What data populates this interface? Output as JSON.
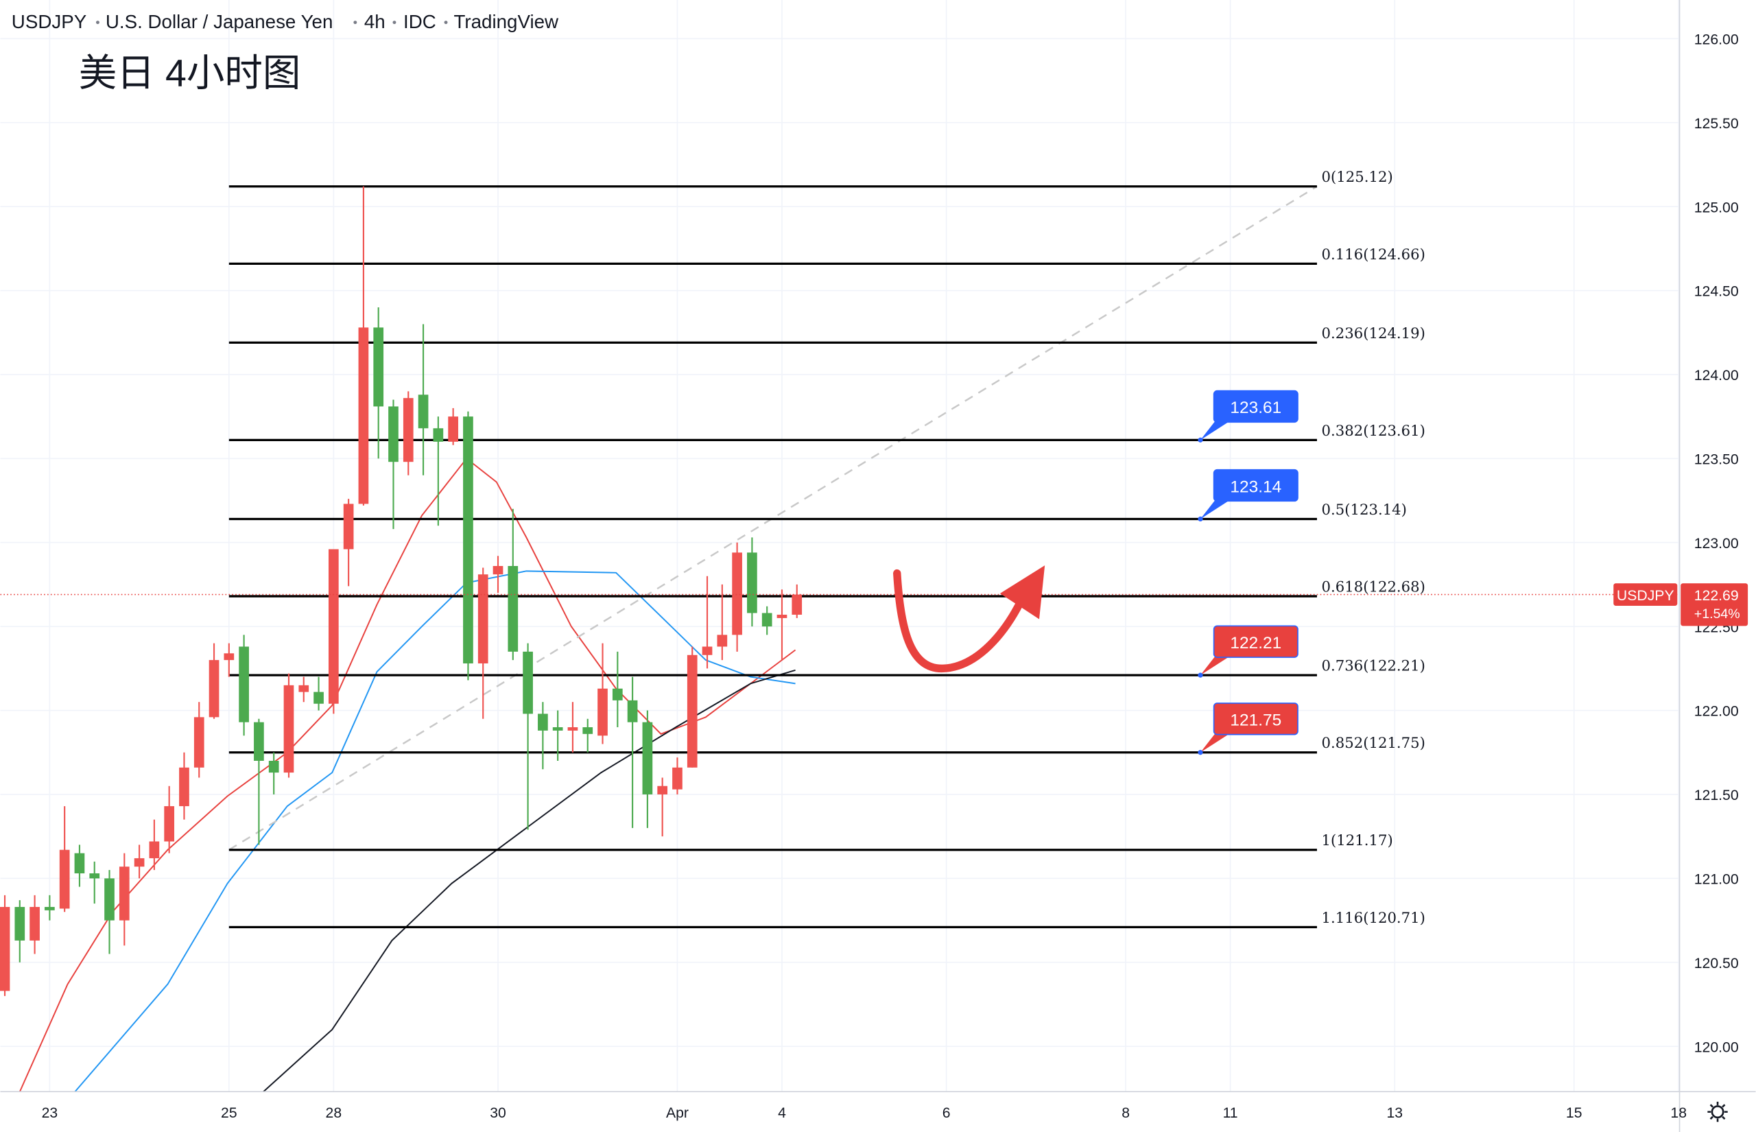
{
  "chart_data": {
    "type": "candlestick",
    "header": [
      "USDJPY",
      "U.S. Dollar / Japanese Yen",
      "4h",
      "IDC",
      "TradingView"
    ],
    "title": "美日 4小时图",
    "open": [
      120.33,
      120.83,
      120.63,
      120.83,
      120.82,
      121.15,
      121.03,
      121.0,
      120.75,
      121.07,
      121.12,
      121.22,
      121.43,
      121.66,
      121.96,
      122.3,
      122.38,
      121.93,
      121.7,
      121.63,
      122.11,
      122.11,
      122.04,
      122.96,
      123.23,
      124.28,
      123.81,
      123.48,
      123.88,
      123.68,
      123.6,
      123.75,
      122.28,
      122.81,
      122.86,
      122.35,
      121.98,
      121.9,
      121.88,
      121.9,
      121.85,
      122.13,
      122.06,
      121.93,
      121.5,
      121.53,
      121.66,
      122.33,
      122.38,
      122.45,
      122.94,
      122.58,
      122.55,
      122.57
    ],
    "high": [
      120.9,
      120.87,
      120.9,
      120.9,
      121.43,
      121.2,
      121.1,
      121.05,
      121.15,
      121.2,
      121.35,
      121.55,
      121.75,
      122.05,
      122.4,
      122.4,
      122.45,
      121.95,
      121.75,
      122.22,
      122.2,
      122.2,
      122.96,
      123.26,
      125.12,
      124.4,
      123.85,
      123.9,
      124.3,
      123.75,
      123.8,
      123.78,
      122.85,
      122.92,
      123.2,
      122.4,
      122.05,
      122.0,
      122.05,
      121.95,
      122.4,
      122.35,
      122.2,
      122.0,
      121.6,
      121.72,
      122.38,
      122.8,
      122.75,
      123.0,
      123.03,
      122.62,
      122.72,
      122.75
    ],
    "low": [
      120.3,
      120.5,
      120.55,
      120.75,
      120.8,
      120.95,
      120.85,
      120.55,
      120.6,
      121.0,
      121.05,
      121.15,
      121.35,
      121.6,
      121.95,
      122.2,
      121.85,
      121.2,
      121.5,
      121.6,
      122.05,
      122.0,
      121.98,
      122.74,
      123.22,
      123.5,
      123.08,
      123.4,
      123.4,
      123.1,
      123.58,
      122.18,
      121.95,
      122.7,
      122.3,
      121.29,
      121.65,
      121.7,
      121.75,
      121.75,
      121.8,
      121.9,
      121.3,
      121.3,
      121.25,
      121.5,
      121.66,
      122.25,
      122.3,
      122.35,
      122.5,
      122.45,
      122.3,
      122.55
    ],
    "close": [
      120.83,
      120.63,
      120.83,
      120.81,
      121.17,
      121.03,
      121.0,
      120.75,
      121.07,
      121.12,
      121.22,
      121.43,
      121.66,
      121.96,
      122.3,
      122.34,
      121.93,
      121.7,
      121.63,
      122.15,
      122.15,
      122.04,
      122.96,
      123.23,
      124.28,
      123.81,
      123.48,
      123.86,
      123.68,
      123.6,
      123.75,
      122.28,
      122.81,
      122.86,
      122.35,
      121.98,
      121.88,
      121.88,
      121.9,
      121.86,
      122.13,
      122.06,
      121.93,
      121.5,
      121.55,
      121.66,
      122.33,
      122.38,
      122.45,
      122.94,
      122.58,
      122.5,
      122.57,
      122.69
    ],
    "up_color": "#ef5350",
    "down_color": "#4caa4f",
    "moving_averages": [
      {
        "color": "#e8413e",
        "x": [
          1,
          4.2,
          7.2,
          10.9,
          14.9,
          18.9,
          21.9,
          24.9,
          27.9,
          30.9,
          32.9,
          34.9,
          37.9,
          40.9,
          43.9,
          46.9,
          49.9,
          52.9
        ],
        "values": [
          119.73,
          120.37,
          120.8,
          121.17,
          121.49,
          121.75,
          122.03,
          122.63,
          123.16,
          123.5,
          123.36,
          123.03,
          122.5,
          122.13,
          121.86,
          121.96,
          122.16,
          122.36
        ]
      },
      {
        "color": "#2196f3",
        "x": [
          4.7,
          10.9,
          14.9,
          18.9,
          21.9,
          24.9,
          27.9,
          30.9,
          34.9,
          40.9,
          43.9,
          46.9,
          49.9,
          52.9
        ],
        "values": [
          119.73,
          120.37,
          120.97,
          121.43,
          121.63,
          122.23,
          122.5,
          122.76,
          122.83,
          122.82,
          122.56,
          122.3,
          122.2,
          122.16
        ]
      },
      {
        "color": "#131722",
        "x": [
          17.3,
          21.9,
          25.9,
          29.9,
          34.9,
          39.9,
          44.9,
          49.9,
          52.9
        ],
        "values": [
          119.73,
          120.1,
          120.63,
          120.97,
          121.3,
          121.63,
          121.9,
          122.16,
          122.24
        ]
      }
    ],
    "fibonacci": {
      "x": [
        15,
        87.8
      ],
      "y": [
        121.17,
        125.12
      ],
      "levels": [
        {
          "label": "0(125.12)",
          "value": 125.12
        },
        {
          "label": "0.116(124.66)",
          "value": 124.66
        },
        {
          "label": "0.236(124.19)",
          "value": 124.19
        },
        {
          "label": "0.382(123.61)",
          "value": 123.61
        },
        {
          "label": "0.5(123.14)",
          "value": 123.14
        },
        {
          "label": "0.618(122.68)",
          "value": 122.68
        },
        {
          "label": "0.736(122.21)",
          "value": 122.21
        },
        {
          "label": "0.852(121.75)",
          "value": 121.75
        },
        {
          "label": "1(121.17)",
          "value": 121.17
        },
        {
          "label": "1.116(120.71)",
          "value": 120.71
        }
      ]
    },
    "callouts": [
      {
        "x": 80,
        "value": 123.61,
        "color": "#2962ff"
      },
      {
        "x": 80,
        "value": 123.14,
        "color": "#2962ff"
      },
      {
        "x": 80,
        "value": 122.21,
        "color": "#e8413e"
      },
      {
        "x": 80,
        "value": 121.75,
        "color": "#e8413e"
      }
    ],
    "last_price": {
      "symbol": "USDJPY",
      "value": 122.69,
      "change": "+1.54%",
      "color": "#e8413e"
    },
    "xlim": [
      -0.3,
      112.06
    ],
    "xticks": [
      {
        "value": 3,
        "label": "23"
      },
      {
        "value": 15,
        "label": "25"
      },
      {
        "value": 22,
        "label": "28"
      },
      {
        "value": 33,
        "label": "30"
      },
      {
        "value": 45,
        "label": "Apr"
      },
      {
        "value": 52,
        "label": "4"
      },
      {
        "value": 63,
        "label": "6"
      },
      {
        "value": 75,
        "label": "8"
      },
      {
        "value": 82,
        "label": "11"
      },
      {
        "value": 93,
        "label": "13"
      },
      {
        "value": 105,
        "label": "15"
      },
      {
        "value": 112,
        "label": "18"
      }
    ],
    "ylim": [
      119.73,
      126.23
    ],
    "yticks": [
      {
        "value": 120,
        "label": "120.00"
      },
      {
        "value": 120.5,
        "label": "120.50"
      },
      {
        "value": 121,
        "label": "121.00"
      },
      {
        "value": 121.5,
        "label": "121.50"
      },
      {
        "value": 122,
        "label": "122.00"
      },
      {
        "value": 122.5,
        "label": "122.50"
      },
      {
        "value": 123,
        "label": "123.00"
      },
      {
        "value": 123.5,
        "label": "123.50"
      },
      {
        "value": 124,
        "label": "124.00"
      },
      {
        "value": 124.5,
        "label": "124.50"
      },
      {
        "value": 125,
        "label": "125.00"
      },
      {
        "value": 125.5,
        "label": "125.50"
      },
      {
        "value": 126,
        "label": "126.00"
      }
    ],
    "grid": true
  }
}
